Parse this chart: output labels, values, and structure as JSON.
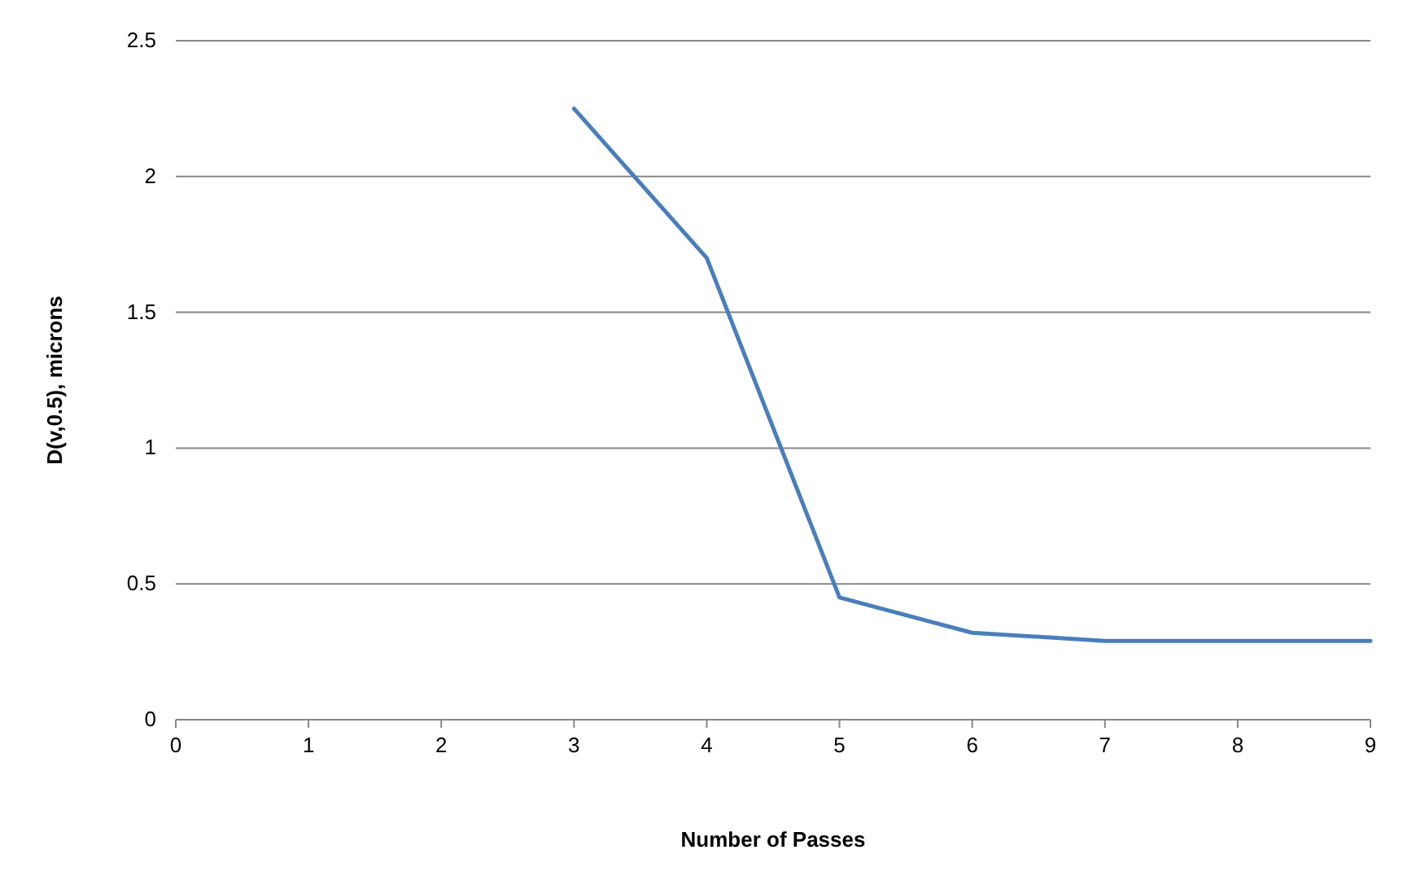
{
  "chart_data": {
    "type": "line",
    "xlabel": "Number of Passes",
    "ylabel": "D(v,0.5), microns",
    "x": [
      3,
      4,
      5,
      6,
      7,
      8,
      9
    ],
    "series": [
      {
        "color": "#4a7ebb",
        "values": [
          2.25,
          1.7,
          0.45,
          0.32,
          0.29,
          0.29,
          0.29
        ]
      }
    ],
    "xlim": [
      0,
      9
    ],
    "xticks": [
      0,
      1,
      2,
      3,
      4,
      5,
      6,
      7,
      8,
      9
    ],
    "ylim": [
      0,
      2.5
    ],
    "yticks": [
      0,
      0.5,
      1,
      1.5,
      2,
      2.5
    ],
    "grid": "y",
    "marker": "none",
    "line_style": "solid"
  }
}
